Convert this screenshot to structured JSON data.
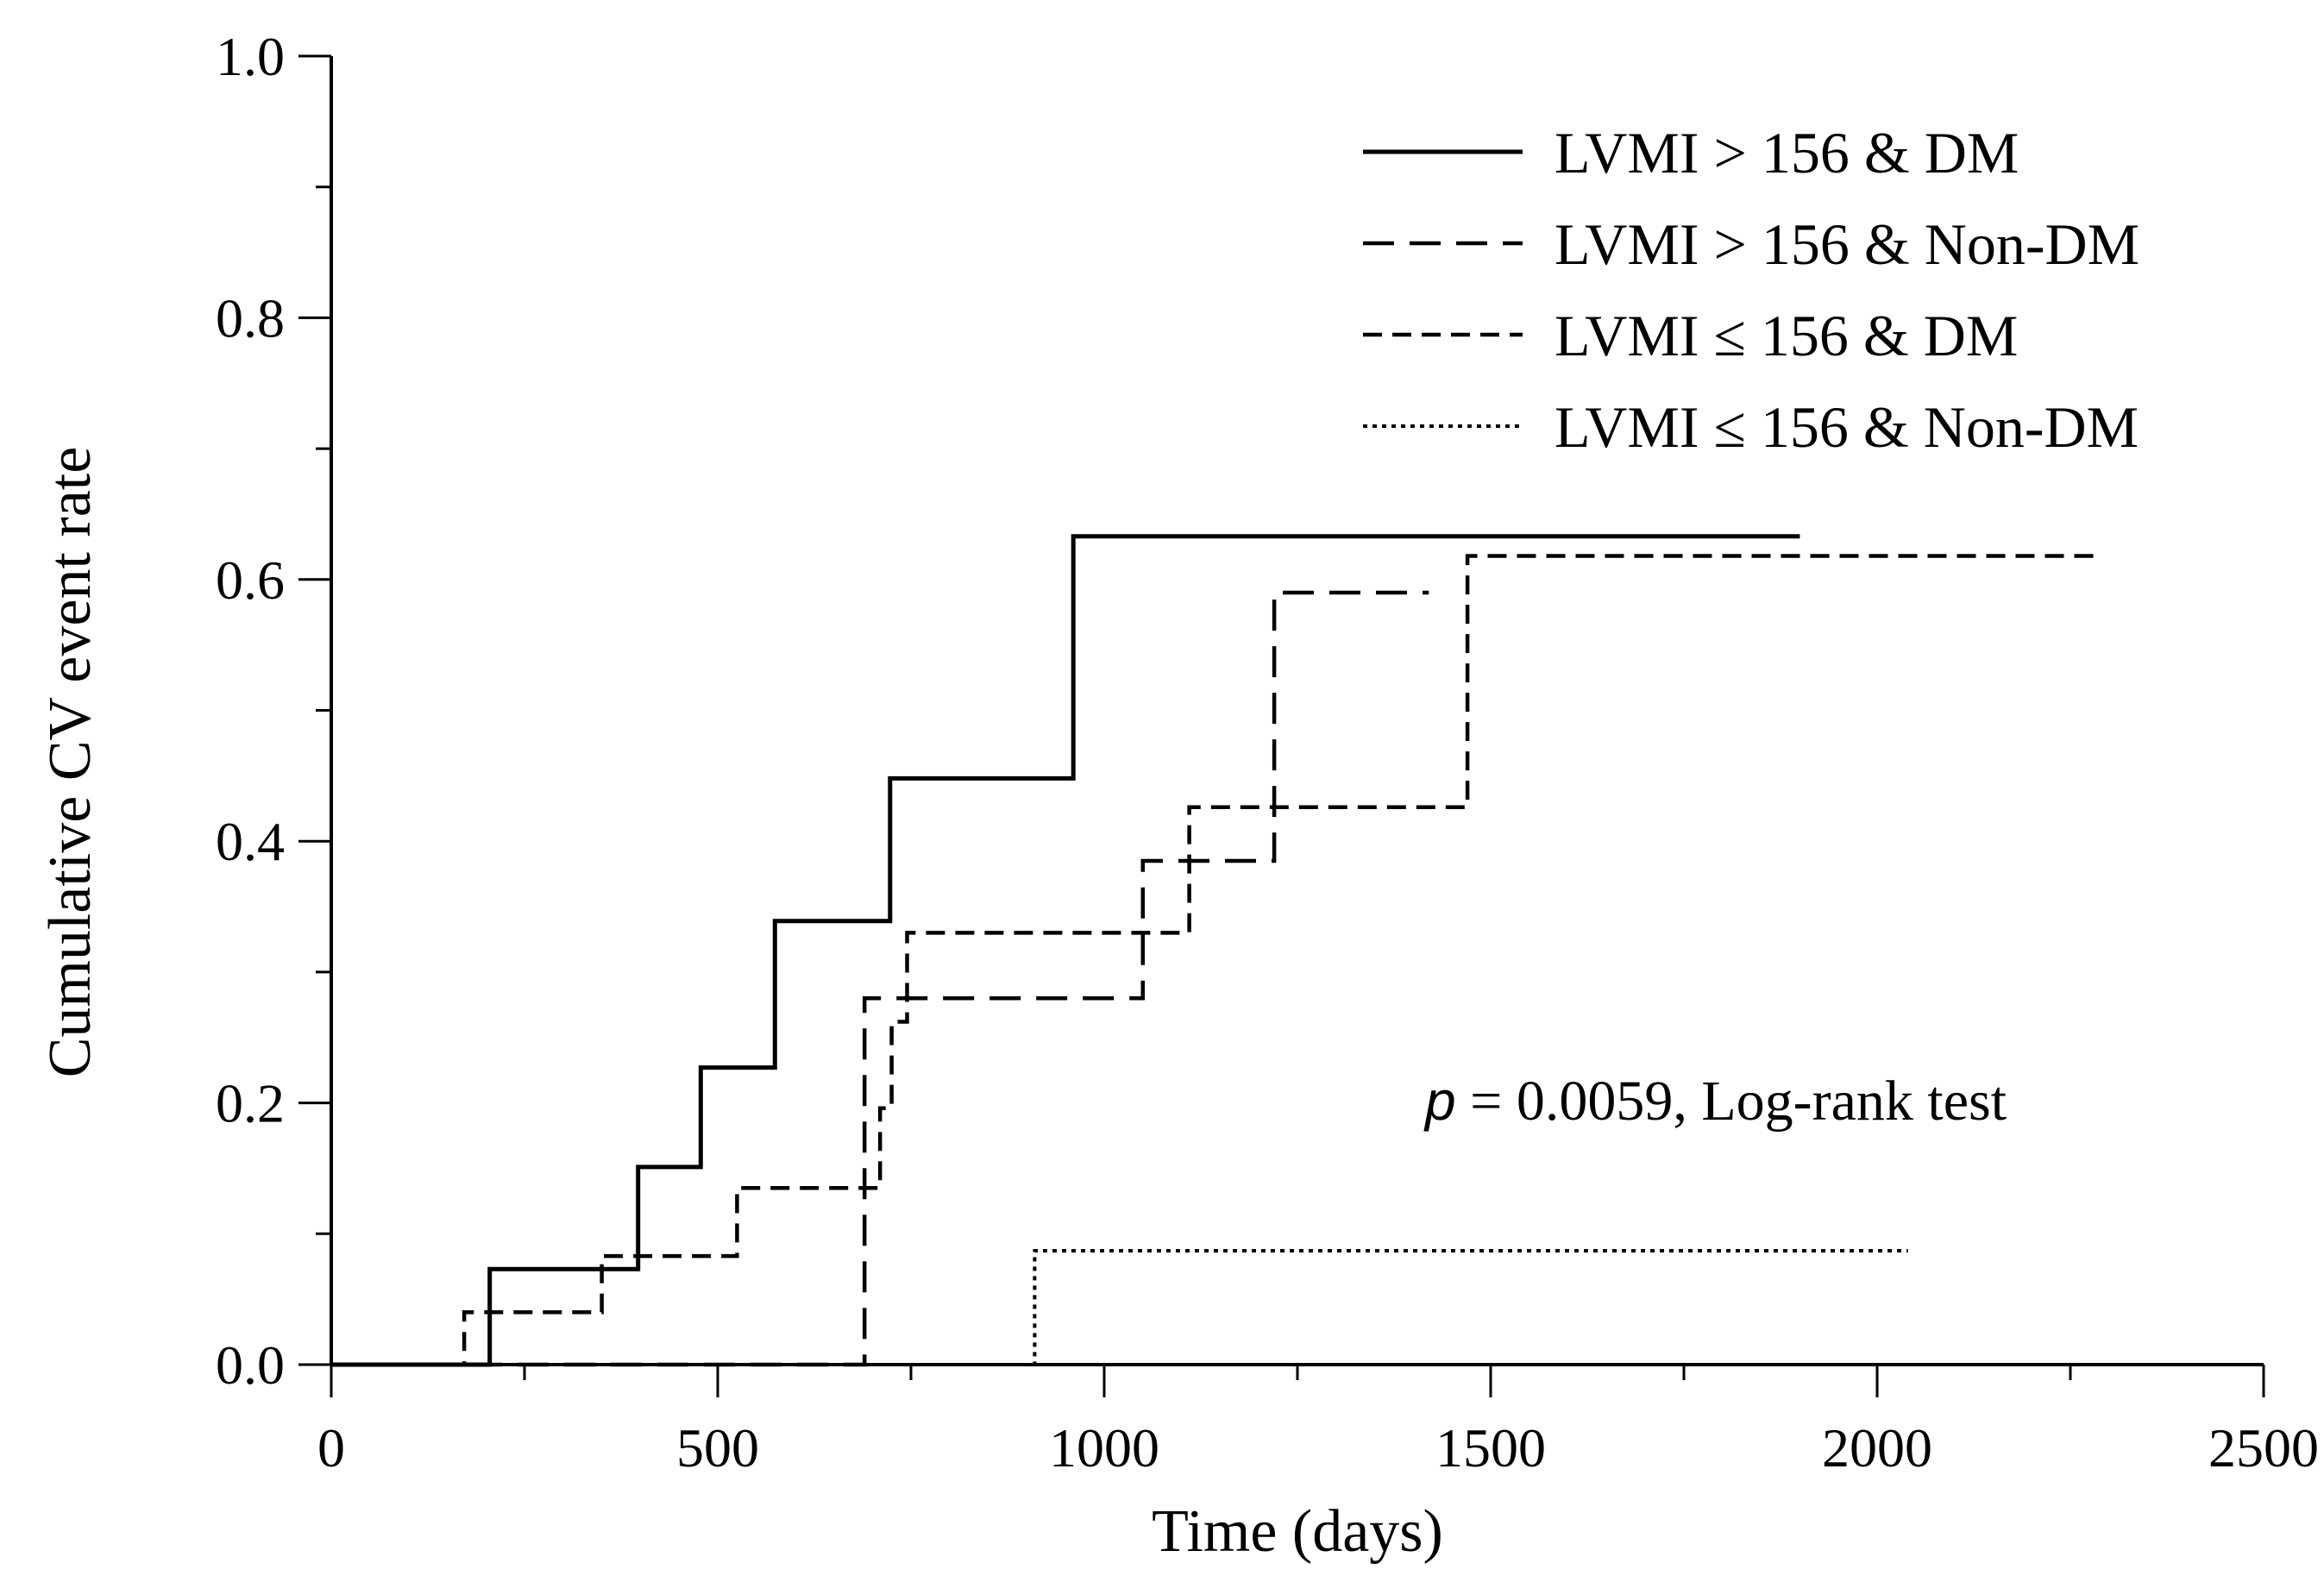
{
  "chart_data": {
    "type": "line",
    "xlabel": "Time (days)",
    "ylabel": "Cumulative CV event rate",
    "xlim": [
      0,
      2500
    ],
    "ylim": [
      0,
      1.0
    ],
    "x_ticks": [
      0,
      500,
      1000,
      1500,
      2000,
      2500
    ],
    "x_tick_labels": [
      "0",
      "500",
      "1000",
      "1500",
      "2000",
      "2500"
    ],
    "y_ticks": [
      0.0,
      0.2,
      0.4,
      0.6,
      0.8,
      1.0
    ],
    "y_tick_labels": [
      "0.0",
      "0.2",
      "0.4",
      "0.6",
      "0.8",
      "1.0"
    ],
    "grid": false,
    "legend_position": "top-right",
    "series": [
      {
        "name": "LVMI > 156 & DM",
        "style": "solid",
        "color": "#000000",
        "x": [
          0,
          205,
          205,
          397,
          397,
          478,
          478,
          574,
          574,
          723,
          723,
          960,
          960,
          1900
        ],
        "y": [
          0,
          0,
          0.073,
          0.073,
          0.151,
          0.151,
          0.227,
          0.227,
          0.339,
          0.339,
          0.448,
          0.448,
          0.633,
          0.633
        ]
      },
      {
        "name": "LVMI > 156 & Non-DM",
        "style": "long-dash",
        "color": "#000000",
        "x": [
          0,
          670,
          670,
          690,
          690,
          1050,
          1050,
          1220,
          1220,
          1420
        ],
        "y": [
          0,
          0,
          0,
          0,
          0.28,
          0.28,
          0.385,
          0.385,
          0.59,
          0.59
        ]
      },
      {
        "name": "LVMI ≤ 156 & DM",
        "style": "short-dash",
        "color": "#000000",
        "x": [
          0,
          172,
          172,
          350,
          350,
          525,
          525,
          710,
          710,
          725,
          725,
          745,
          745,
          1110,
          1110,
          1470,
          1470,
          2290
        ],
        "y": [
          0,
          0,
          0.04,
          0.04,
          0.083,
          0.083,
          0.135,
          0.135,
          0.196,
          0.196,
          0.262,
          0.262,
          0.33,
          0.33,
          0.426,
          0.426,
          0.618,
          0.618
        ]
      },
      {
        "name": "LVMI ≤ 156 & Non-DM",
        "style": "dotted",
        "color": "#000000",
        "x": [
          0,
          910,
          910,
          2040
        ],
        "y": [
          0,
          0,
          0.087,
          0.087
        ]
      }
    ],
    "annotation": {
      "p_symbol": "p",
      "text": " = 0.0059, Log-rank test"
    }
  }
}
